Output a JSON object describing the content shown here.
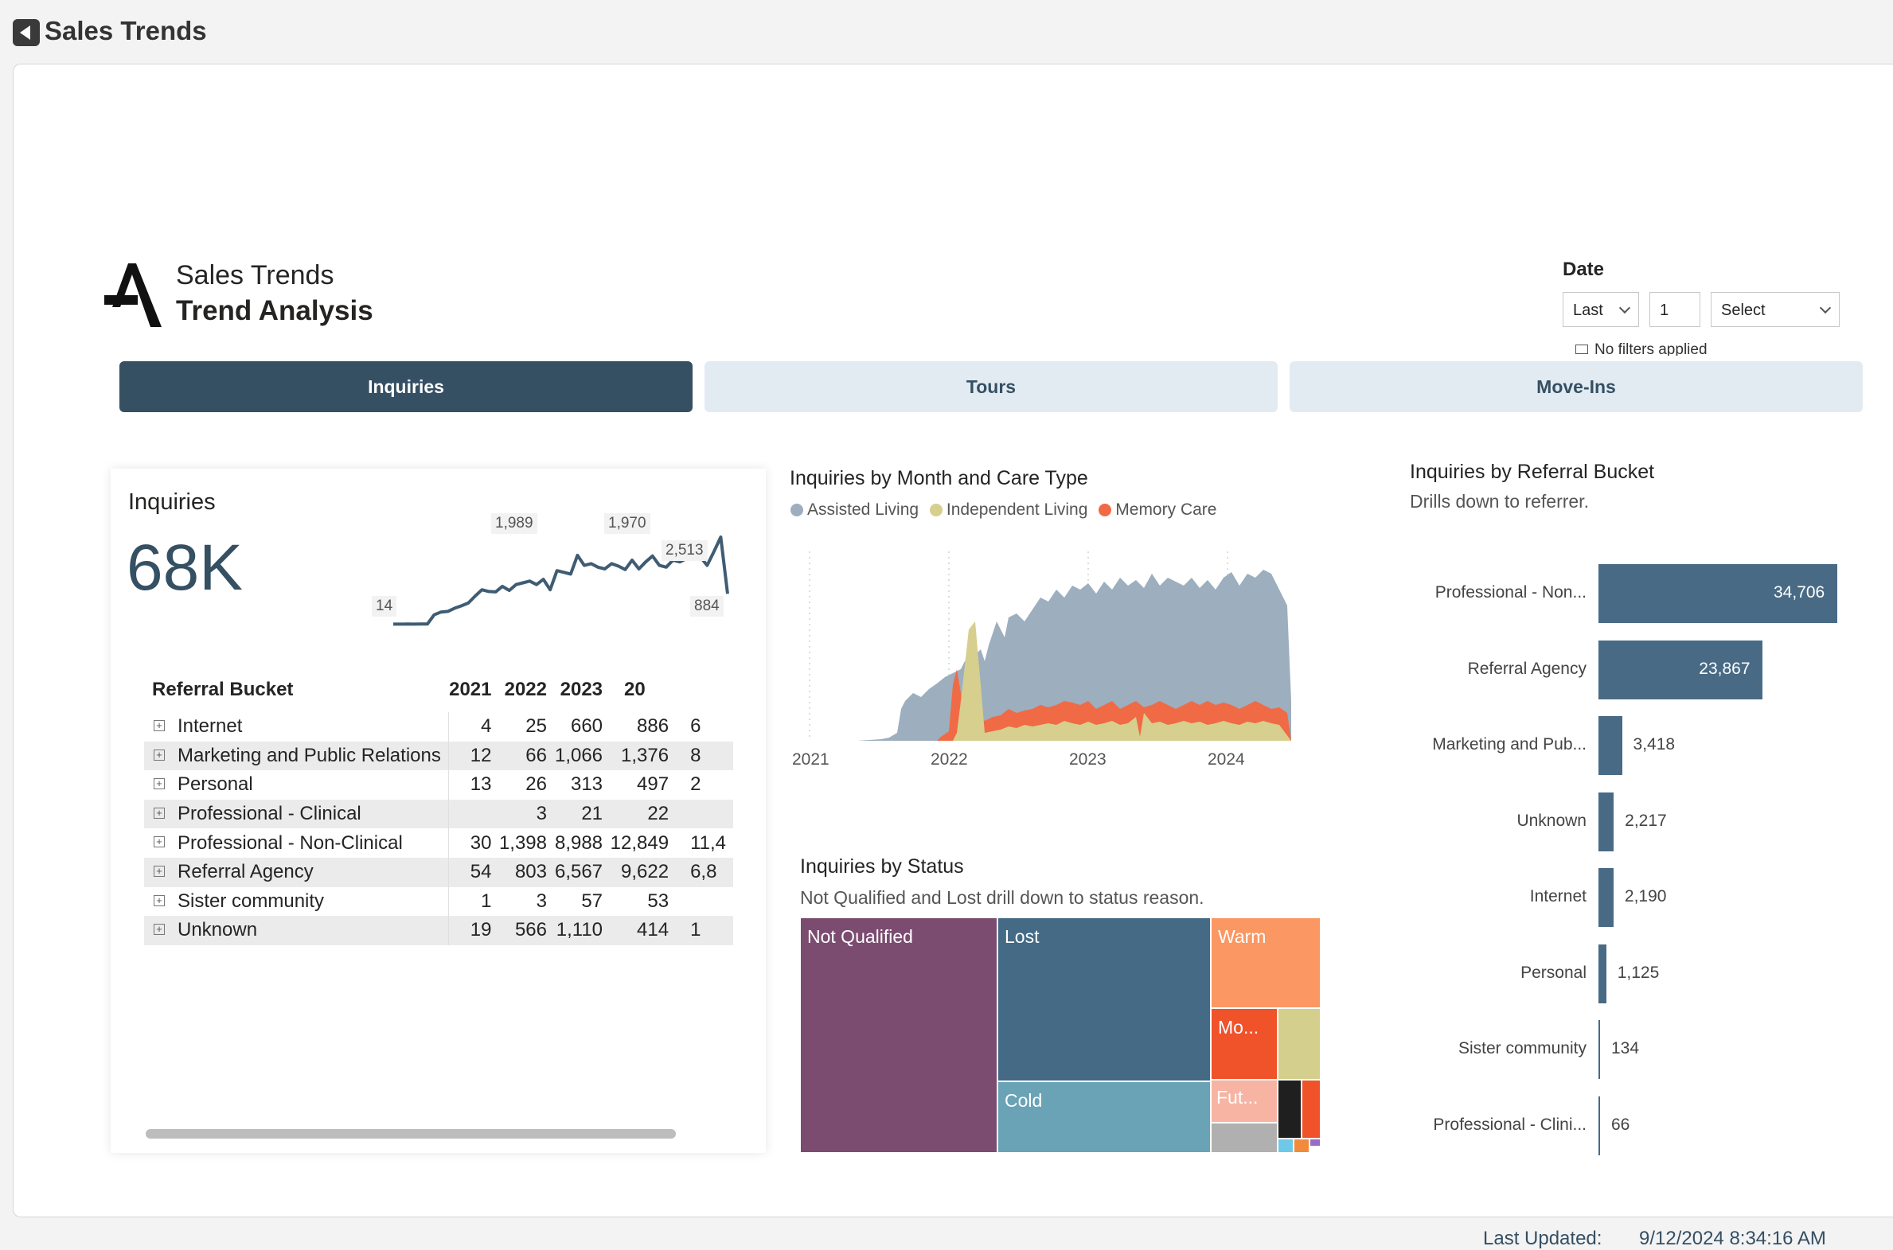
{
  "window": {
    "title": "Sales Trends"
  },
  "header": {
    "brand_line1": "Sales Trends",
    "brand_line2": "Trend Analysis"
  },
  "date_filter": {
    "label": "Date",
    "relative": "Last",
    "count": "1",
    "unit": "Select",
    "status": "No filters applied"
  },
  "tabs": [
    {
      "label": "Inquiries",
      "active": true
    },
    {
      "label": "Tours",
      "active": false
    },
    {
      "label": "Move-Ins",
      "active": false
    }
  ],
  "kpi": {
    "title": "Inquiries",
    "value": "68K",
    "sparkline_labels": {
      "min": "14",
      "peak1": "1,989",
      "peak2": "1,970",
      "recent": "2,513",
      "last": "884"
    },
    "sparkline_values": [
      14,
      14,
      15,
      14,
      16,
      15,
      280,
      360,
      380,
      470,
      540,
      620,
      820,
      1000,
      950,
      940,
      1100,
      980,
      1150,
      1200,
      1250,
      1150,
      1300,
      1000,
      1550,
      1500,
      1450,
      1989,
      1700,
      1750,
      1650,
      1600,
      1750,
      1680,
      1580,
      1850,
      1600,
      1800,
      1970,
      1700,
      1650,
      1850,
      1800,
      1900,
      1880,
      1950,
      1700,
      2100,
      2513,
      884
    ],
    "table": {
      "headers": [
        "Referral Bucket",
        "2021",
        "2022",
        "2023",
        "20"
      ],
      "rows": [
        [
          "Internet",
          "4",
          "25",
          "660",
          "886",
          "6"
        ],
        [
          "Marketing and Public Relations",
          "12",
          "66",
          "1,066",
          "1,376",
          "8"
        ],
        [
          "Personal",
          "13",
          "26",
          "313",
          "497",
          "2"
        ],
        [
          "Professional - Clinical",
          "",
          "3",
          "21",
          "22",
          ""
        ],
        [
          "Professional - Non-Clinical",
          "30",
          "1,398",
          "8,988",
          "12,849",
          "11,4"
        ],
        [
          "Referral Agency",
          "54",
          "803",
          "6,567",
          "9,622",
          "6,8"
        ],
        [
          "Sister community",
          "1",
          "3",
          "57",
          "53",
          ""
        ],
        [
          "Unknown",
          "19",
          "566",
          "1,110",
          "414",
          "1"
        ]
      ]
    }
  },
  "chart_data": [
    {
      "type": "area",
      "title": "Inquiries by Month and Care Type",
      "x_ticks": [
        "2021",
        "2022",
        "2023",
        "2024"
      ],
      "series": [
        {
          "name": "Assisted Living",
          "color": "#9daebe"
        },
        {
          "name": "Independent Living",
          "color": "#d6cf8e"
        },
        {
          "name": "Memory Care",
          "color": "#f06a45"
        }
      ]
    },
    {
      "type": "treemap",
      "title": "Inquiries by Status",
      "subtitle": "Not Qualified and Lost drill down to status reason.",
      "items": [
        {
          "label": "Not Qualified",
          "color": "#7b4c70"
        },
        {
          "label": "Lost",
          "color": "#456a85"
        },
        {
          "label": "Cold",
          "color": "#6aa3b5"
        },
        {
          "label": "Warm",
          "color": "#fb9763"
        },
        {
          "label": "Mo...",
          "color": "#f0522a"
        },
        {
          "label": "",
          "color": "#d4cf8c"
        },
        {
          "label": "Fut...",
          "color": "#f7b4a3"
        },
        {
          "label": "",
          "color": "#1f1f1f"
        },
        {
          "label": "",
          "color": "#f0522a"
        },
        {
          "label": "",
          "color": "#b0b0b0"
        }
      ]
    },
    {
      "type": "bar",
      "title": "Inquiries by Referral Bucket",
      "subtitle": "Drills down to referrer.",
      "categories": [
        "Professional - Non...",
        "Referral Agency",
        "Marketing and Pub...",
        "Unknown",
        "Internet",
        "Personal",
        "Sister community",
        "Professional - Clini..."
      ],
      "values": [
        34706,
        23867,
        3418,
        2217,
        2190,
        1125,
        134,
        66
      ],
      "value_labels": [
        "34,706",
        "23,867",
        "3,418",
        "2,217",
        "2,190",
        "1,125",
        "134",
        "66"
      ],
      "color": "#486a85"
    }
  ],
  "footer": {
    "last_updated_label": "Last Updated:",
    "last_updated_value": "9/12/2024 8:34:16 AM"
  }
}
